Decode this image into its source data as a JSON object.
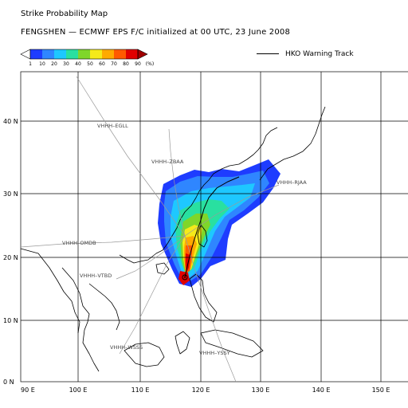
{
  "title": "Strike Probability Map",
  "subtitle": "FENGSHEN  —  ECMWF EPS F/C initialized at 00 UTC, 23 June 2008",
  "legend": {
    "colorbar_values": [
      "1",
      "10",
      "20",
      "30",
      "40",
      "50",
      "60",
      "70",
      "80",
      "90",
      "(%)"
    ],
    "colors": [
      "#ffffff",
      "#1e3cff",
      "#2f86ff",
      "#1ec8ff",
      "#29e0a0",
      "#7fd62a",
      "#f5ea1a",
      "#ffaa00",
      "#ff5a00",
      "#e00000",
      "#a00000"
    ],
    "track_label": "HKO Warning Track"
  },
  "map": {
    "lat_labels": [
      "0 N",
      "10 N",
      "20 N",
      "30 N",
      "40 N"
    ],
    "lon_labels": [
      "90 E",
      "100 E",
      "110 E",
      "120 E",
      "130 E",
      "140 E",
      "150 E"
    ],
    "route_labels": [
      "VHHH–EGLL",
      "VHHH–ZBAA",
      "VHHH–RJAA",
      "VHHH–OMDB",
      "VHHH–VTBD",
      "VHHH–WSSS",
      "VHHH–YSSY"
    ]
  }
}
